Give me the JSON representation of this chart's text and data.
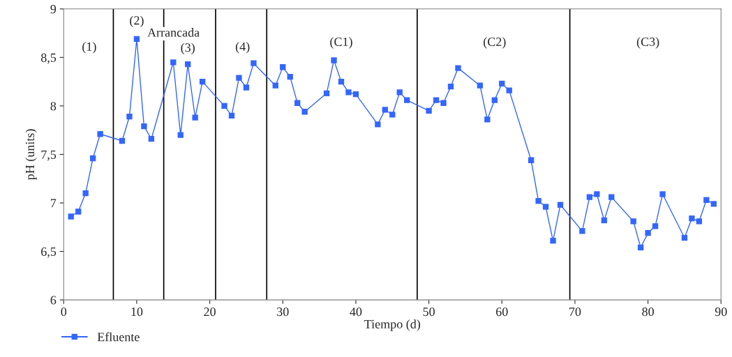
{
  "chart_data": {
    "type": "line",
    "xlabel": "Tiempo (d)",
    "ylabel": "pH (units)",
    "xlim": [
      0,
      90
    ],
    "xticks": [
      0,
      10,
      20,
      30,
      40,
      50,
      60,
      70,
      80,
      90
    ],
    "ylim": [
      6,
      9
    ],
    "yticks": [
      6,
      {
        "value": 6.5,
        "label": "6,5"
      },
      7,
      {
        "value": 7.5,
        "label": "7,5"
      },
      8,
      {
        "value": 8.5,
        "label": "8,5"
      },
      9
    ],
    "grid": false,
    "legend": "bottom left",
    "marker": "square",
    "line_style": "solid",
    "series": [
      {
        "name": "Efluente",
        "color": "#3366ff",
        "x": [
          1,
          2,
          3,
          4,
          5,
          8,
          9,
          10,
          11,
          12,
          15,
          16,
          17,
          18,
          19,
          22,
          23,
          24,
          25,
          26,
          29,
          30,
          31,
          32,
          33,
          36,
          37,
          38,
          39,
          40,
          43,
          44,
          45,
          46,
          47,
          50,
          51,
          52,
          53,
          54,
          57,
          58,
          59,
          60,
          61,
          64,
          65,
          66,
          67,
          68,
          71,
          72,
          73,
          74,
          75,
          78,
          79,
          80,
          81,
          82,
          85,
          86,
          87,
          88,
          89
        ],
        "values": [
          6.86,
          6.91,
          7.1,
          7.46,
          7.71,
          7.64,
          7.89,
          8.69,
          7.79,
          7.66,
          8.45,
          7.7,
          8.43,
          7.88,
          8.25,
          8.0,
          7.9,
          8.29,
          8.19,
          8.44,
          8.21,
          8.4,
          8.3,
          8.03,
          7.94,
          8.13,
          8.47,
          8.25,
          8.14,
          8.12,
          7.81,
          7.96,
          7.91,
          8.14,
          8.06,
          7.95,
          8.06,
          8.03,
          8.2,
          8.39,
          8.21,
          7.86,
          8.06,
          8.23,
          8.16,
          7.44,
          7.02,
          6.96,
          6.61,
          6.98,
          6.71,
          7.06,
          7.09,
          6.82,
          7.06,
          6.81,
          6.54,
          6.69,
          6.76,
          7.09,
          6.64,
          6.84,
          6.81,
          7.03,
          6.99
        ]
      }
    ],
    "ref_lines": [
      {
        "axis": "x",
        "value": 6.8,
        "color": "#000000"
      },
      {
        "axis": "x",
        "value": 13.7,
        "color": "#000000"
      },
      {
        "axis": "x",
        "value": 20.8,
        "color": "#000000"
      },
      {
        "axis": "x",
        "value": 27.8,
        "color": "#000000"
      },
      {
        "axis": "x",
        "value": 48.4,
        "color": "#000000"
      },
      {
        "axis": "x",
        "value": 69.3,
        "color": "#000000"
      }
    ],
    "annotations": [
      {
        "text": "(1)",
        "x": 3.5,
        "y": 8.6
      },
      {
        "text": "(2)",
        "x": 10,
        "y": 8.87
      },
      "Arrancada",
      {
        "text": "(3)",
        "x": 17,
        "y": 8.59
      },
      {
        "text": "(4)",
        "x": 24.5,
        "y": 8.6
      },
      {
        "text": "(C1)",
        "x": 38,
        "y": 8.65
      },
      {
        "text": "(C2)",
        "x": 59,
        "y": 8.65
      },
      {
        "text": "(C3)",
        "x": 80,
        "y": 8.65
      }
    ]
  }
}
